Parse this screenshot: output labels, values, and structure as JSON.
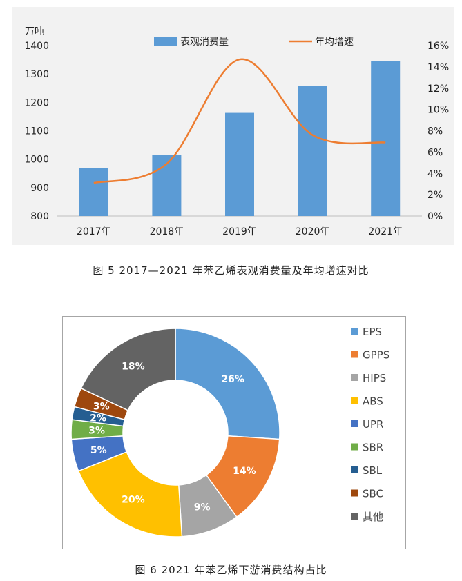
{
  "figure5": {
    "caption": "图 5  2017—2021 年苯乙烯表观消费量及年均增速对比",
    "chart_data": {
      "type": "bar",
      "categories": [
        "2017年",
        "2018年",
        "2019年",
        "2020年",
        "2021年"
      ],
      "series": [
        {
          "name": "表观消费量",
          "type": "bar",
          "axis": "left",
          "color": "#5b9bd5",
          "values": [
            969,
            1014,
            1163,
            1257,
            1345
          ]
        },
        {
          "name": "年均增速",
          "type": "line",
          "axis": "right",
          "color": "#ed7d31",
          "values": [
            3.1,
            4.9,
            14.7,
            7.6,
            6.9
          ]
        }
      ],
      "ylabel": "万吨",
      "ylim": [
        800,
        1400
      ],
      "yticks": [
        "800",
        "900",
        "1000",
        "1100",
        "1200",
        "1300",
        "1400"
      ],
      "y2lim": [
        0,
        16
      ],
      "y2ticks": [
        "0%",
        "2%",
        "4%",
        "6%",
        "8%",
        "10%",
        "12%",
        "14%",
        "16%"
      ],
      "legend": "top",
      "grid": false
    }
  },
  "figure6": {
    "caption": "图 6  2021 年苯乙烯下游消费结构占比",
    "chart_data": {
      "type": "pie",
      "style": "donut",
      "labels": [
        "EPS",
        "GPPS",
        "HIPS",
        "ABS",
        "UPR",
        "SBR",
        "SBL",
        "SBC",
        "其他"
      ],
      "values": [
        26,
        14,
        9,
        20,
        5,
        3,
        2,
        3,
        18
      ],
      "value_labels": [
        "26%",
        "14%",
        "9%",
        "20%",
        "5%",
        "3%",
        "2%",
        "3%",
        "18%"
      ],
      "colors": [
        "#5b9bd5",
        "#ed7d31",
        "#a5a5a5",
        "#ffc000",
        "#4472c4",
        "#70ad47",
        "#255e91",
        "#9e480e",
        "#636363"
      ],
      "legend": "right"
    }
  }
}
